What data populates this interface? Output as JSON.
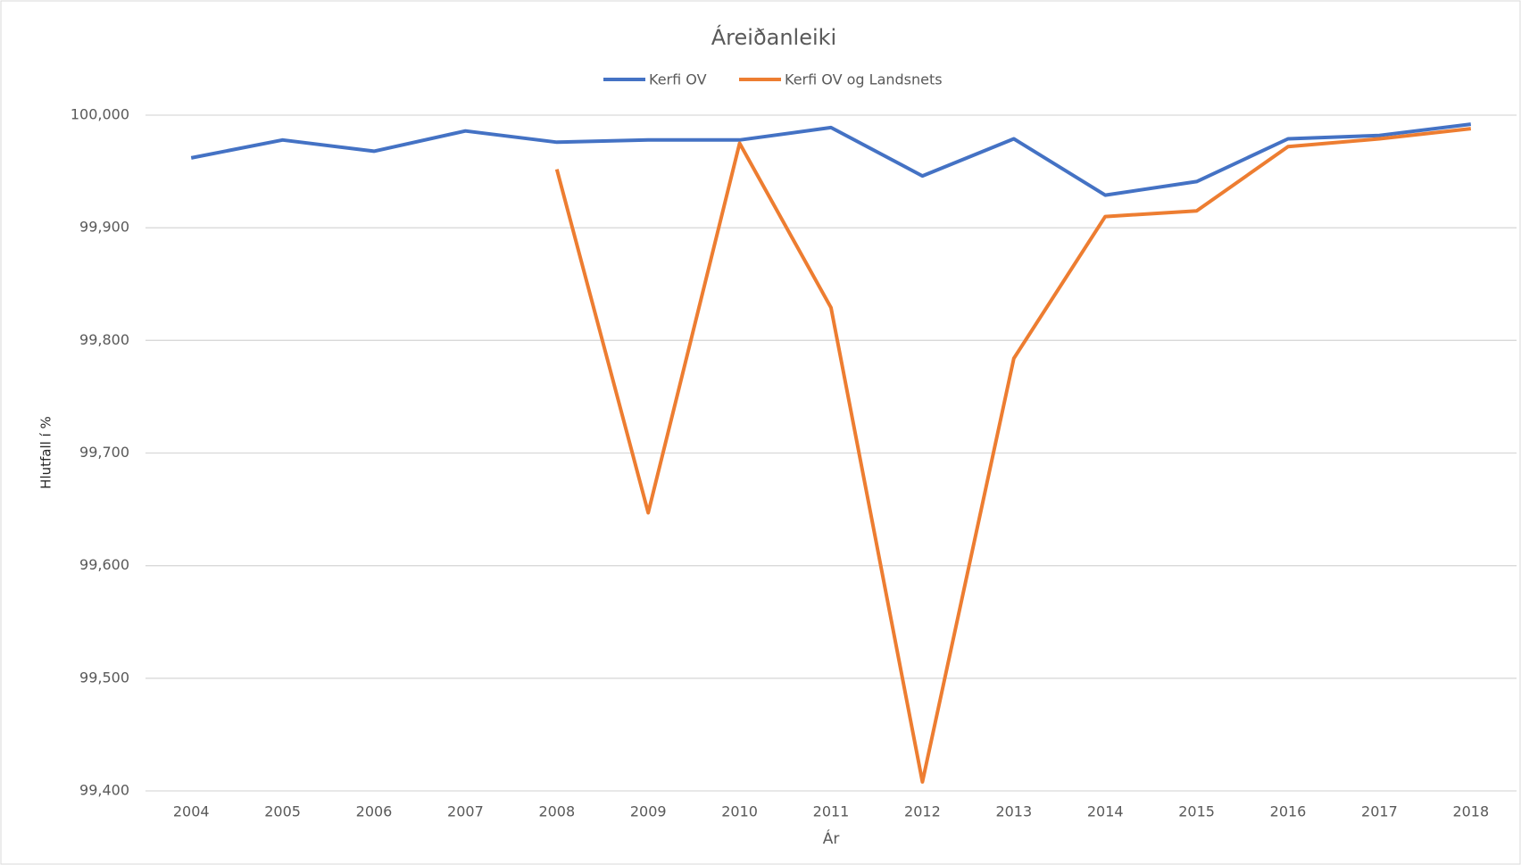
{
  "chart_data": {
    "type": "line",
    "title": "Áreiðanleiki",
    "x_label": "Ár",
    "y_label": "Hlutfall í %",
    "categories": [
      "2004",
      "2005",
      "2006",
      "2007",
      "2008",
      "2009",
      "2010",
      "2011",
      "2012",
      "2013",
      "2014",
      "2015",
      "2016",
      "2017",
      "2018"
    ],
    "series": [
      {
        "name": "Kerfi OV",
        "color": "#4472c4",
        "values": [
          99.962,
          99.978,
          99.968,
          99.986,
          99.976,
          99.978,
          99.978,
          99.989,
          99.946,
          99.979,
          99.929,
          99.941,
          99.979,
          99.982,
          99.992
        ]
      },
      {
        "name": "Kerfi OV og Landsnets",
        "color": "#ed7d31",
        "values": [
          null,
          null,
          null,
          null,
          99.952,
          99.647,
          99.975,
          99.829,
          99.408,
          99.784,
          99.91,
          99.915,
          99.972,
          99.979,
          99.988
        ]
      }
    ],
    "ylim": [
      99.4,
      100
    ],
    "yticks": [
      {
        "value": 99.4,
        "label": "99,400"
      },
      {
        "value": 99.5,
        "label": "99,500"
      },
      {
        "value": 99.6,
        "label": "99,600"
      },
      {
        "value": 99.7,
        "label": "99,700"
      },
      {
        "value": 99.8,
        "label": "99,800"
      },
      {
        "value": 99.9,
        "label": "99,900"
      },
      {
        "value": 100,
        "label": "100,000"
      }
    ],
    "grid": true,
    "legend": "top"
  }
}
